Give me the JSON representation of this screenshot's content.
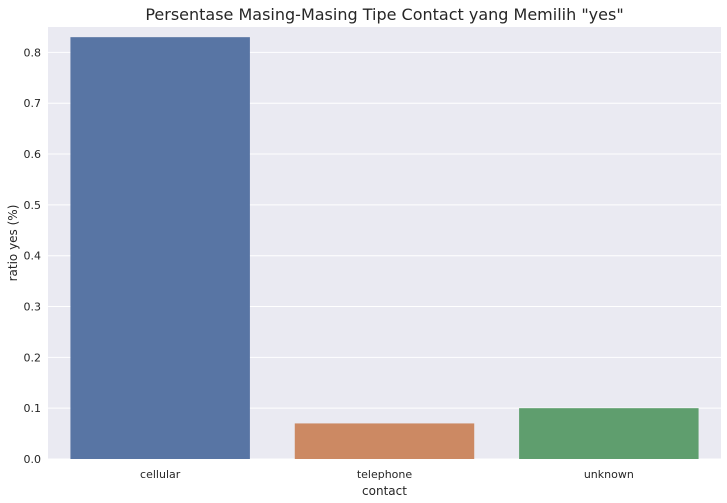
{
  "chart_data": {
    "type": "bar",
    "title": "Persentase Masing-Masing Tipe Contact yang Memilih \"yes\"",
    "xlabel": "contact",
    "ylabel": "ratio yes (%)",
    "categories": [
      "cellular",
      "telephone",
      "unknown"
    ],
    "values": [
      0.83,
      0.07,
      0.1
    ],
    "colors": [
      "#5875a4",
      "#cc8963",
      "#5f9e6e"
    ],
    "ylim": [
      0,
      0.85
    ],
    "yticks": [
      "0.0",
      "0.1",
      "0.2",
      "0.3",
      "0.4",
      "0.5",
      "0.6",
      "0.7",
      "0.8"
    ],
    "grid": true,
    "background": "#eaeaf2"
  }
}
